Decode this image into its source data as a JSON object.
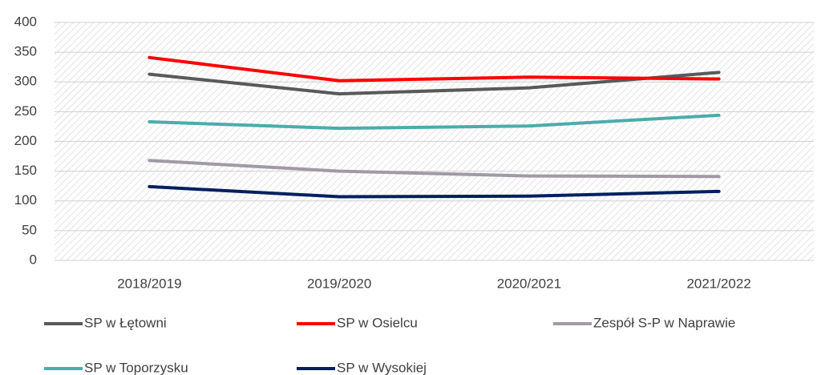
{
  "chart_data": {
    "type": "line",
    "categories": [
      "2018/2019",
      "2019/2020",
      "2020/2021",
      "2021/2022"
    ],
    "series": [
      {
        "name": "SP w Łętowni",
        "color": "#595959",
        "values": [
          313,
          280,
          290,
          316
        ]
      },
      {
        "name": "SP w Osielcu",
        "color": "#ff0000",
        "values": [
          341,
          302,
          308,
          305
        ]
      },
      {
        "name": "Zespół S-P w Naprawie",
        "color": "#a19aa5",
        "values": [
          168,
          150,
          142,
          141
        ]
      },
      {
        "name": "SP w Toporzysku",
        "color": "#4bacac",
        "values": [
          233,
          222,
          226,
          244
        ]
      },
      {
        "name": "SP w Wysokiej",
        "color": "#002060",
        "values": [
          124,
          107,
          108,
          116
        ]
      }
    ],
    "ylim": [
      0,
      400
    ],
    "yticks": [
      0,
      50,
      100,
      150,
      200,
      250,
      300,
      350,
      400
    ],
    "grid": true,
    "legend": "bottom"
  }
}
